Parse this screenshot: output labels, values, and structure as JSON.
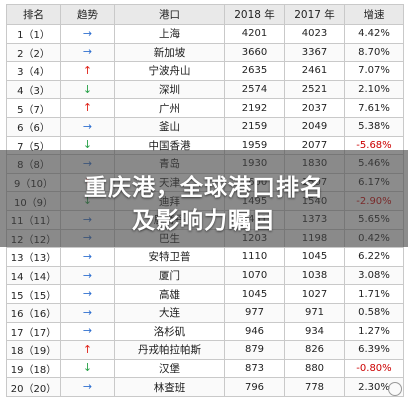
{
  "table": {
    "headers": [
      "排名",
      "趋势",
      "港口",
      "2018 年",
      "2017 年",
      "增速"
    ],
    "rows": [
      {
        "rank": "1（1）",
        "trend": "right",
        "port": "上海",
        "y2018": "4201",
        "y2017": "4023",
        "growth": "4.42%"
      },
      {
        "rank": "2（2）",
        "trend": "right",
        "port": "新加坡",
        "y2018": "3660",
        "y2017": "3367",
        "growth": "8.70%"
      },
      {
        "rank": "3（4）",
        "trend": "up",
        "port": "宁波舟山",
        "y2018": "2635",
        "y2017": "2461",
        "growth": "7.07%"
      },
      {
        "rank": "4（3）",
        "trend": "down",
        "port": "深圳",
        "y2018": "2574",
        "y2017": "2521",
        "growth": "2.10%"
      },
      {
        "rank": "5（7）",
        "trend": "up",
        "port": "广州",
        "y2018": "2192",
        "y2017": "2037",
        "growth": "7.61%"
      },
      {
        "rank": "6（6）",
        "trend": "right",
        "port": "釜山",
        "y2018": "2159",
        "y2017": "2049",
        "growth": "5.38%"
      },
      {
        "rank": "7（5）",
        "trend": "down",
        "port": "中国香港",
        "y2018": "1959",
        "y2017": "2077",
        "growth": "-5.68%"
      },
      {
        "rank": "8（8）",
        "trend": "right",
        "port": "青岛",
        "y2018": "1930",
        "y2017": "1830",
        "growth": "5.46%"
      },
      {
        "rank": "9（10）",
        "trend": "up",
        "port": "天津",
        "y2018": "1600",
        "y2017": "1507",
        "growth": "6.17%"
      },
      {
        "rank": "10（9）",
        "trend": "down",
        "port": "迪拜",
        "y2018": "1495",
        "y2017": "1540",
        "growth": "-2.90%"
      },
      {
        "rank": "11（11）",
        "trend": "right",
        "port": "鹿特丹",
        "y2018": "1451",
        "y2017": "1373",
        "growth": "5.65%"
      },
      {
        "rank": "12（12）",
        "trend": "right",
        "port": "巴生",
        "y2018": "1203",
        "y2017": "1198",
        "growth": "0.42%"
      },
      {
        "rank": "13（13）",
        "trend": "right",
        "port": "安特卫普",
        "y2018": "1110",
        "y2017": "1045",
        "growth": "6.22%"
      },
      {
        "rank": "14（14）",
        "trend": "right",
        "port": "厦门",
        "y2018": "1070",
        "y2017": "1038",
        "growth": "3.08%"
      },
      {
        "rank": "15（15）",
        "trend": "right",
        "port": "高雄",
        "y2018": "1045",
        "y2017": "1027",
        "growth": "1.71%"
      },
      {
        "rank": "16（16）",
        "trend": "right",
        "port": "大连",
        "y2018": "977",
        "y2017": "971",
        "growth": "0.58%"
      },
      {
        "rank": "17（17）",
        "trend": "right",
        "port": "洛杉矶",
        "y2018": "946",
        "y2017": "934",
        "growth": "1.27%"
      },
      {
        "rank": "18（19）",
        "trend": "up",
        "port": "丹戎帕拉帕斯",
        "y2018": "879",
        "y2017": "826",
        "growth": "6.39%"
      },
      {
        "rank": "19（18）",
        "trend": "down",
        "port": "汉堡",
        "y2018": "873",
        "y2017": "880",
        "growth": "-0.80%"
      },
      {
        "rank": "20（20）",
        "trend": "right",
        "port": "林查班",
        "y2018": "796",
        "y2017": "778",
        "growth": "2.30%"
      }
    ]
  },
  "overlay": {
    "line1": "重庆港，全球港口排名",
    "line2": "及影响力瞩目"
  },
  "colors": {
    "up": "#e0241b",
    "down": "#2aa24a",
    "right": "#2f6fcf"
  }
}
